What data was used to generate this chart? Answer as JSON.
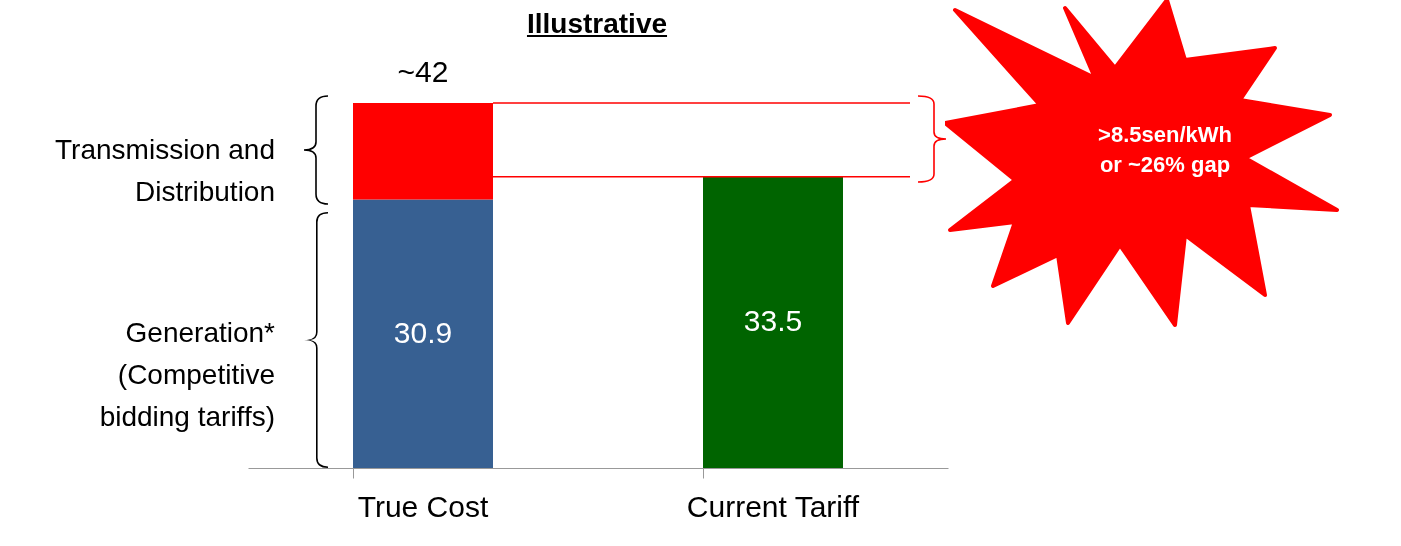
{
  "chart_data": {
    "type": "bar",
    "title": "Illustrative",
    "categories": [
      "True Cost",
      "Current Tariff"
    ],
    "stacked": true,
    "series": [
      {
        "name": "Generation* (Competitive bidding tariffs)",
        "color": "#376092",
        "values": [
          30.9,
          null
        ],
        "value_labels": [
          "30.9",
          null
        ]
      },
      {
        "name": "Transmission and Distribution",
        "color": "#ff0000",
        "values": [
          11.1,
          null
        ]
      },
      {
        "color": "#006400",
        "values": [
          null,
          33.5
        ],
        "value_labels": [
          null,
          "33.5"
        ]
      }
    ],
    "totals": [
      "~42",
      null
    ],
    "ref_lines": [
      {
        "axis": "y",
        "value": 42,
        "color": "#ff0000"
      },
      {
        "axis": "y",
        "value": 33.5,
        "color": "#ff0000"
      }
    ],
    "annotations": [
      ">8.5sen/kWh or ~26% gap"
    ]
  }
}
